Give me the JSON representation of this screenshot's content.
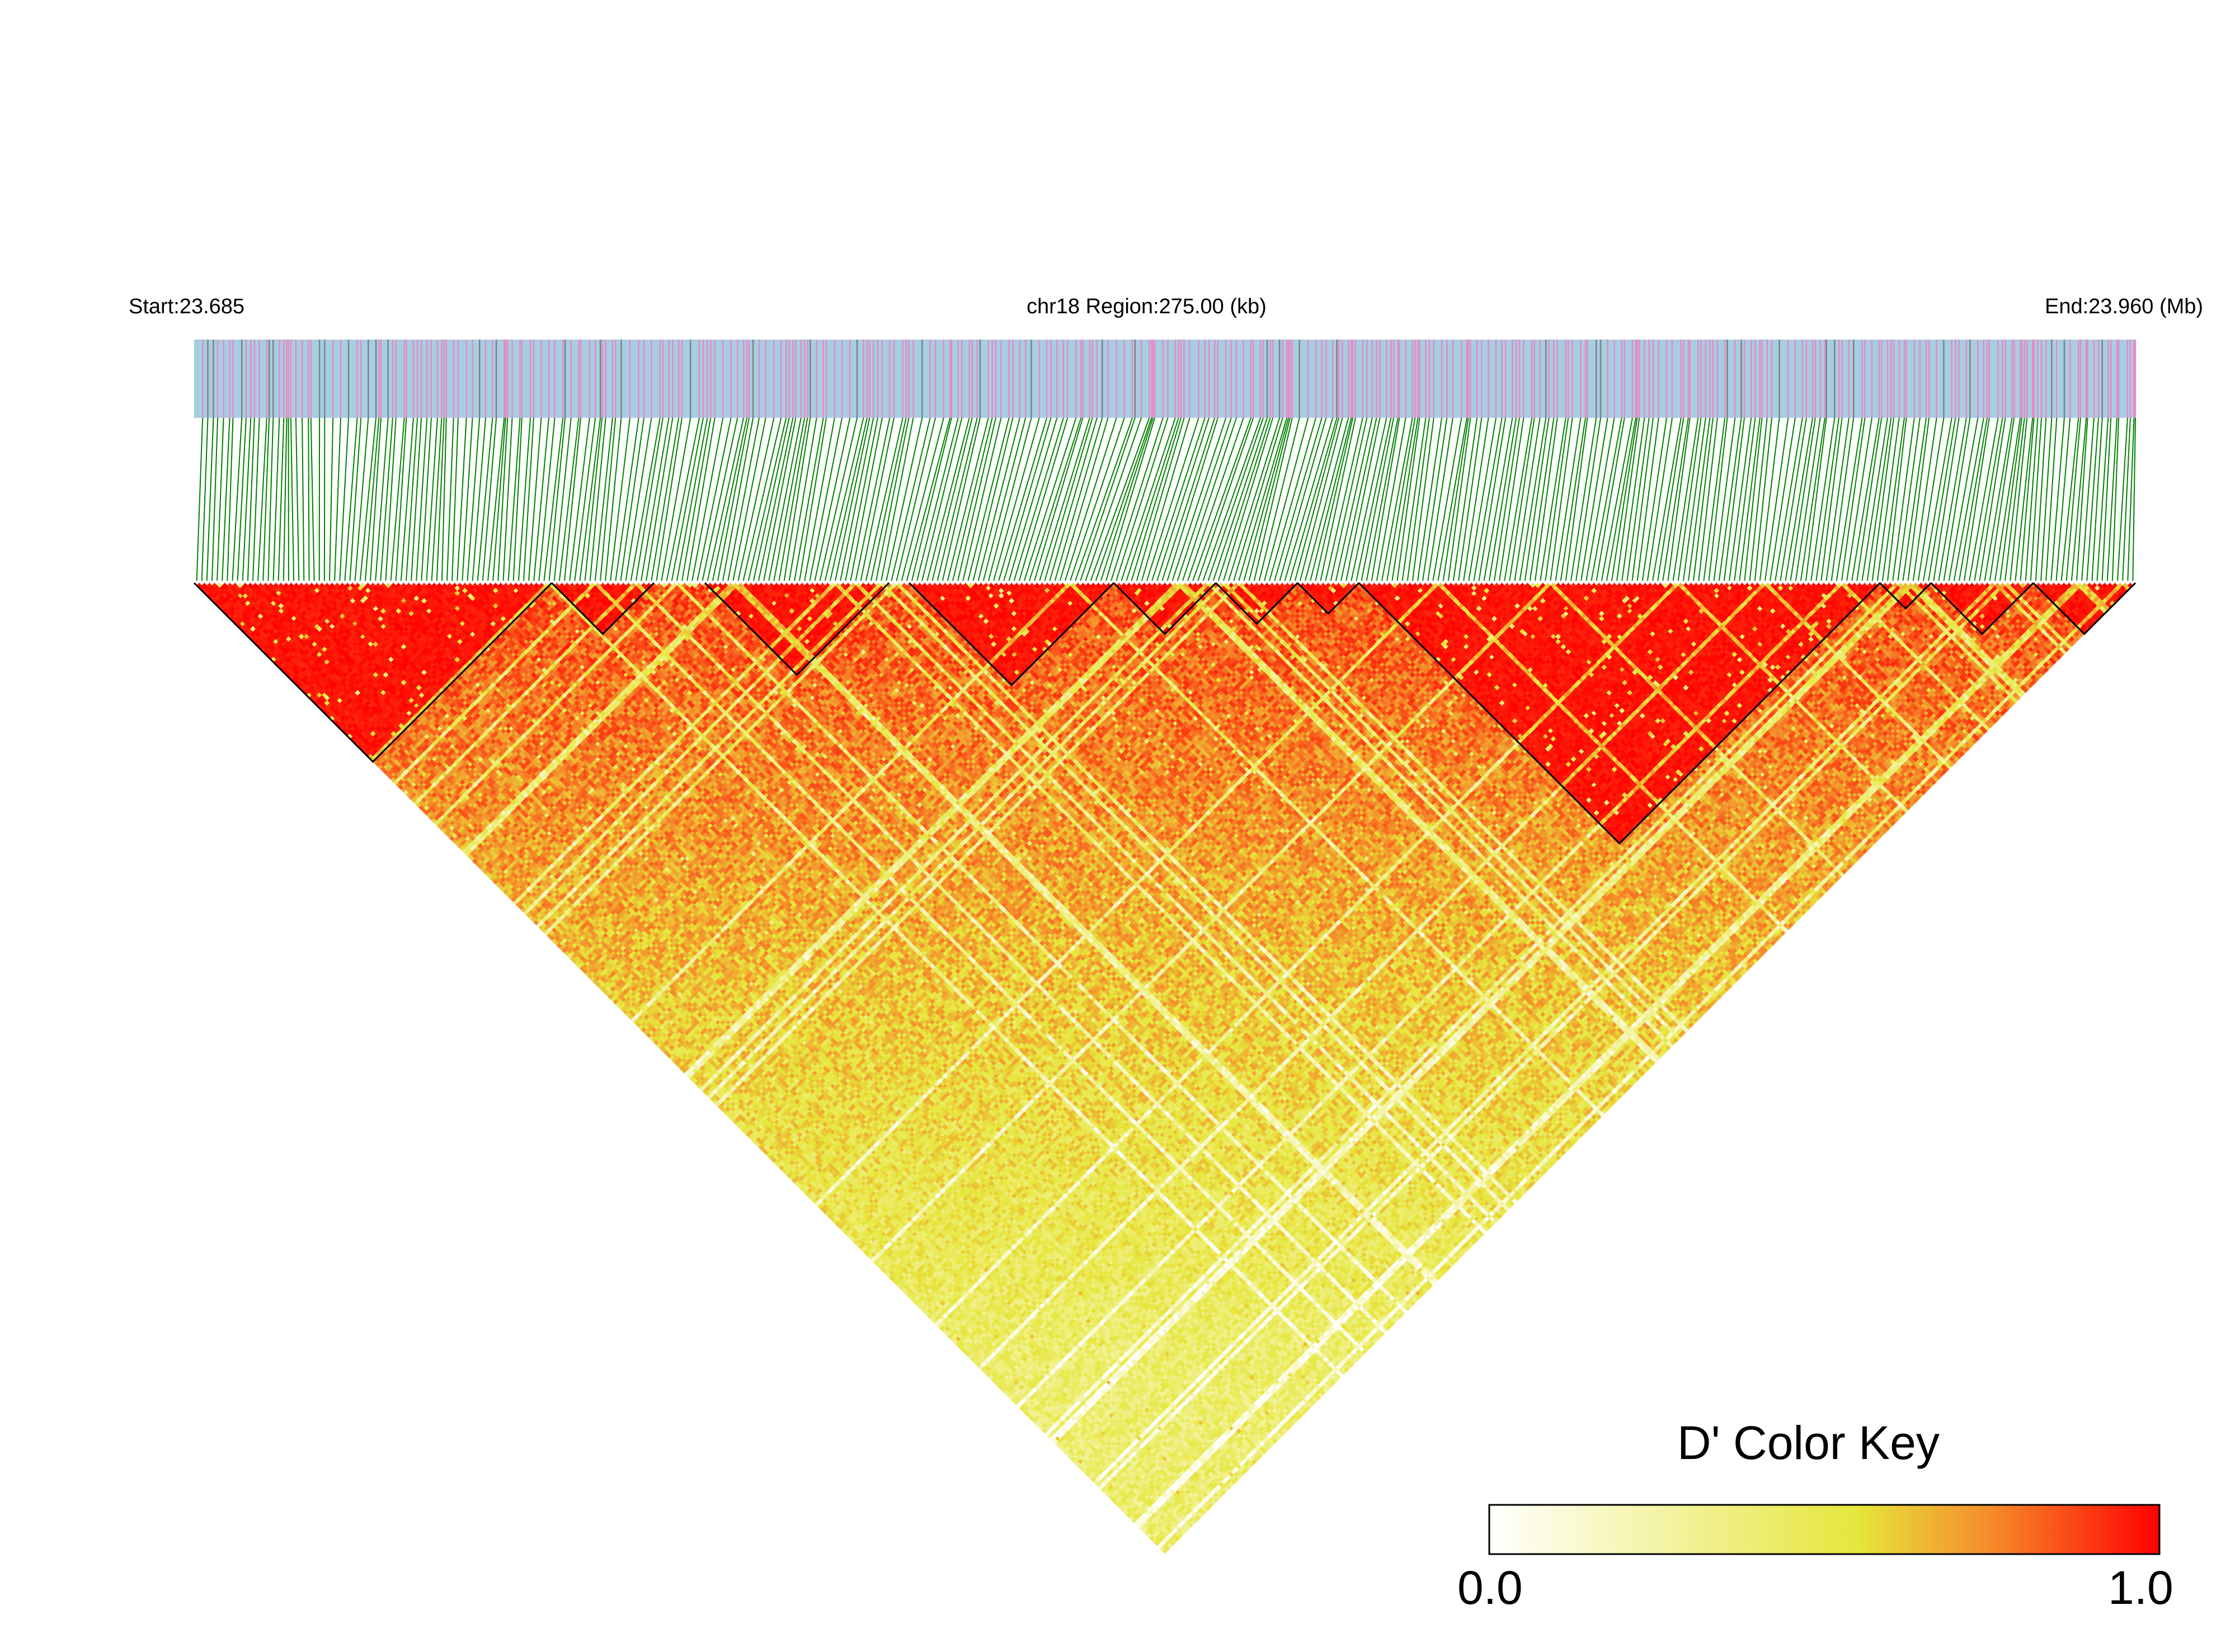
{
  "header": {
    "start_label": "Start:23.685",
    "region_label": "chr18 Region:275.00 (kb)",
    "end_label": "End:23.960 (Mb)"
  },
  "chart_data": {
    "type": "heatmap",
    "title": "",
    "region": {
      "chromosome": "chr18",
      "start_mb": 23.685,
      "end_mb": 23.96,
      "length_kb": 275.0
    },
    "metric": "D'",
    "color_key": {
      "title": "D' Color Key",
      "min_label": "0.0",
      "max_label": "1.0",
      "range": [
        0.0,
        1.0
      ],
      "stops": [
        {
          "value": 0.0,
          "color": "#ffffff"
        },
        {
          "value": 0.55,
          "color": "#e6e63c"
        },
        {
          "value": 0.75,
          "color": "#f58a2a"
        },
        {
          "value": 1.0,
          "color": "#ff0000"
        }
      ]
    },
    "colors": {
      "snp_track_background": "#a6cee3",
      "snp_marker_major": "#e78ac3",
      "snp_marker_minor": "#808080",
      "connector_lines": "#008000",
      "block_outline": "#000000"
    },
    "blocks_approx_snp_index": [
      [
        0,
        70
      ],
      [
        70,
        90
      ],
      [
        100,
        136
      ],
      [
        140,
        180
      ],
      [
        180,
        200
      ],
      [
        200,
        216
      ],
      [
        216,
        228
      ],
      [
        228,
        330
      ],
      [
        330,
        340
      ],
      [
        340,
        360
      ],
      [
        360,
        380
      ]
    ],
    "snp_count_approx": 380,
    "grid": false,
    "legend": "bottom-right"
  }
}
